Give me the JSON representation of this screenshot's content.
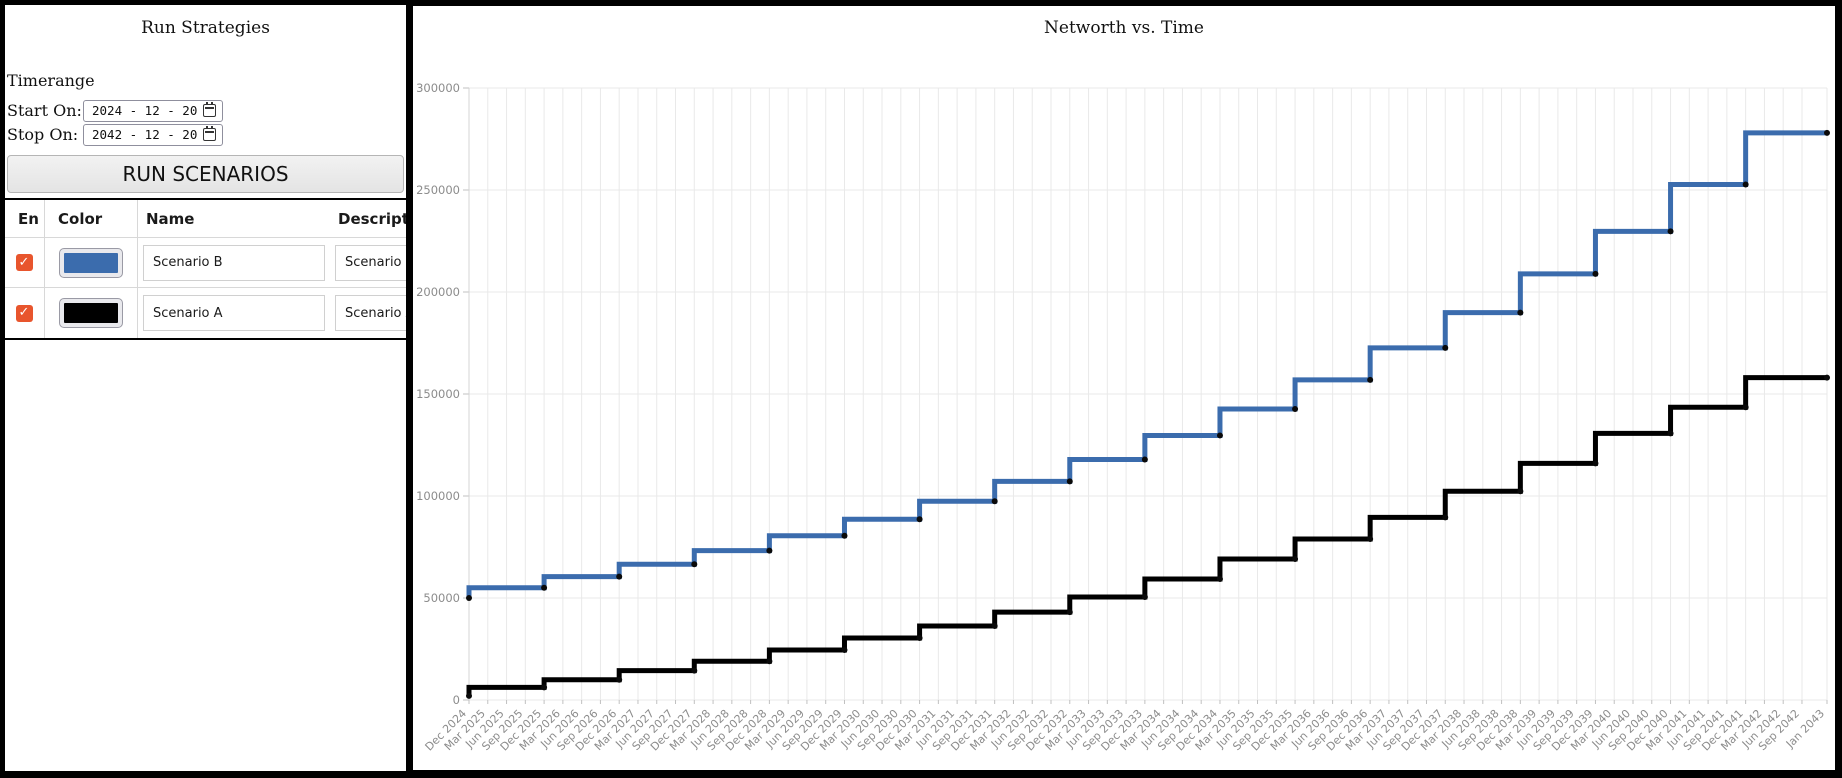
{
  "left_panel": {
    "title": "Run Strategies",
    "timerange": {
      "section_label": "Timerange",
      "start_label": "Start On:",
      "start_value": "2024 - 12 - 20",
      "stop_label": "Stop On:",
      "stop_value": "2042 - 12 - 20"
    },
    "run_button_label": "RUN SCENARIOS",
    "table": {
      "headers": [
        "En",
        "Color",
        "Name",
        "Description"
      ],
      "rows": [
        {
          "enabled": true,
          "color": "#3b6cad",
          "name": "Scenario B",
          "description": "Scenario B"
        },
        {
          "enabled": true,
          "color": "#000000",
          "name": "Scenario A",
          "description": "Scenario A"
        }
      ]
    },
    "checkbox_color": "#e8552d"
  },
  "chart_data": {
    "type": "line",
    "title": "Networth vs. Time",
    "step_mode": "rise-at-left-point",
    "grid": true,
    "ylim": [
      0,
      300000
    ],
    "y_ticks": [
      0,
      50000,
      100000,
      150000,
      200000,
      250000,
      300000
    ],
    "x_range_months": [
      0,
      217
    ],
    "x_tick_months": [
      0,
      3,
      6,
      9,
      12,
      15,
      18,
      21,
      24,
      27,
      30,
      33,
      36,
      39,
      42,
      45,
      48,
      51,
      54,
      57,
      60,
      63,
      66,
      69,
      72,
      75,
      78,
      81,
      84,
      87,
      90,
      93,
      96,
      99,
      102,
      105,
      108,
      111,
      114,
      117,
      120,
      123,
      126,
      129,
      132,
      135,
      138,
      141,
      144,
      147,
      150,
      153,
      156,
      159,
      162,
      165,
      168,
      171,
      174,
      177,
      180,
      183,
      186,
      189,
      192,
      195,
      198,
      201,
      204,
      207,
      210,
      213,
      217
    ],
    "x_tick_labels": [
      "Dec 2024",
      "Mar 2025",
      "Jun 2025",
      "Sep 2025",
      "Dec 2025",
      "Mar 2026",
      "Jun 2026",
      "Sep 2026",
      "Dec 2026",
      "Mar 2027",
      "Jun 2027",
      "Sep 2027",
      "Dec 2027",
      "Mar 2028",
      "Jun 2028",
      "Sep 2028",
      "Dec 2028",
      "Mar 2029",
      "Jun 2029",
      "Sep 2029",
      "Dec 2029",
      "Mar 2030",
      "Jun 2030",
      "Sep 2030",
      "Dec 2030",
      "Mar 2031",
      "Jun 2031",
      "Sep 2031",
      "Dec 2031",
      "Mar 2032",
      "Jun 2032",
      "Sep 2032",
      "Dec 2032",
      "Mar 2033",
      "Jun 2033",
      "Sep 2033",
      "Dec 2033",
      "Mar 2034",
      "Jun 2034",
      "Sep 2034",
      "Dec 2034",
      "Mar 2035",
      "Jun 2035",
      "Sep 2035",
      "Dec 2035",
      "Mar 2036",
      "Jun 2036",
      "Sep 2036",
      "Dec 2036",
      "Mar 2037",
      "Jun 2037",
      "Sep 2037",
      "Dec 2037",
      "Mar 2038",
      "Jun 2038",
      "Sep 2038",
      "Dec 2038",
      "Mar 2039",
      "Jun 2039",
      "Sep 2039",
      "Dec 2039",
      "Mar 2040",
      "Jun 2040",
      "Sep 2040",
      "Dec 2040",
      "Mar 2041",
      "Jun 2041",
      "Sep 2041",
      "Dec 2041",
      "Mar 2042",
      "Jun 2042",
      "Sep 2042",
      "Jan 2043"
    ],
    "series": [
      {
        "name": "Scenario B",
        "color": "#3b6cad",
        "points_months": [
          0,
          12,
          24,
          36,
          48,
          60,
          72,
          84,
          96,
          108,
          120,
          132,
          144,
          156,
          168,
          180,
          192,
          204,
          217
        ],
        "values": [
          50000,
          55000,
          60500,
          66550,
          73205,
          80526,
          88578,
          97436,
          107179,
          117897,
          129687,
          142656,
          156921,
          172613,
          189875,
          208862,
          229748,
          252723,
          277995
        ]
      },
      {
        "name": "Scenario A",
        "color": "#000000",
        "points_months": [
          0,
          12,
          24,
          36,
          48,
          60,
          72,
          84,
          96,
          108,
          120,
          132,
          144,
          156,
          168,
          180,
          192,
          204,
          217
        ],
        "values": [
          2000,
          6200,
          9900,
          14400,
          19000,
          24500,
          30400,
          36300,
          43100,
          50500,
          59300,
          69100,
          78900,
          89500,
          102300,
          116000,
          130700,
          143500,
          158000
        ]
      }
    ],
    "axis_label_color": "#8c8c8c",
    "grid_color": "#e9e9e9"
  }
}
